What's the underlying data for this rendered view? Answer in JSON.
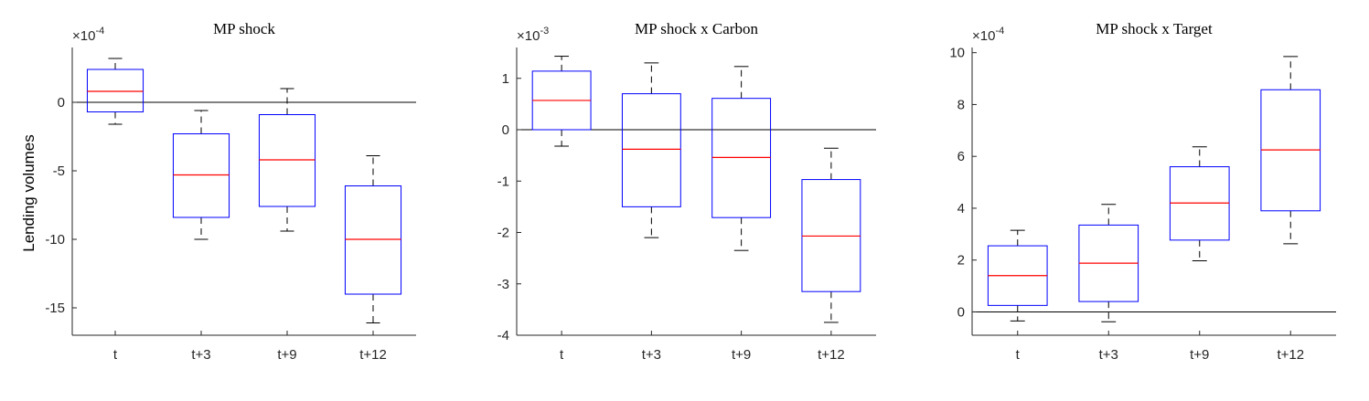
{
  "colors": {
    "box": "#0000ff",
    "median": "#ff0000",
    "whisker": "#000000",
    "axis": "#262626"
  },
  "chart_data": [
    {
      "type": "boxplot",
      "title": "MP shock",
      "ylabel": "Lending volumes",
      "exponent_base": "×10",
      "exponent_power": "-4",
      "categories": [
        "t",
        "t+3",
        "t+9",
        "t+12"
      ],
      "ylim": [
        -17,
        4
      ],
      "yticks": [
        -15,
        -10,
        -5,
        0
      ],
      "zero_line": true,
      "boxes": [
        {
          "whisker_low": -1.6,
          "q1": -0.7,
          "median": 0.8,
          "q3": 2.4,
          "whisker_high": 3.2
        },
        {
          "whisker_low": -10.0,
          "q1": -8.4,
          "median": -5.3,
          "q3": -2.3,
          "whisker_high": -0.6
        },
        {
          "whisker_low": -9.4,
          "q1": -7.6,
          "median": -4.2,
          "q3": -0.9,
          "whisker_high": 1.0
        },
        {
          "whisker_low": -16.1,
          "q1": -14.0,
          "median": -10.0,
          "q3": -6.1,
          "whisker_high": -3.9
        }
      ]
    },
    {
      "type": "boxplot",
      "title": "MP shock x Carbon",
      "ylabel": "",
      "exponent_base": "×10",
      "exponent_power": "-3",
      "categories": [
        "t",
        "t+3",
        "t+9",
        "t+12"
      ],
      "ylim": [
        -4,
        1.6
      ],
      "yticks": [
        -4,
        -3,
        -2,
        -1,
        0,
        1
      ],
      "zero_line": true,
      "boxes": [
        {
          "whisker_low": -0.32,
          "q1": 0.0,
          "median": 0.57,
          "q3": 1.14,
          "whisker_high": 1.43
        },
        {
          "whisker_low": -2.1,
          "q1": -1.5,
          "median": -0.38,
          "q3": 0.7,
          "whisker_high": 1.3
        },
        {
          "whisker_low": -2.35,
          "q1": -1.71,
          "median": -0.54,
          "q3": 0.61,
          "whisker_high": 1.23
        },
        {
          "whisker_low": -3.75,
          "q1": -3.15,
          "median": -2.07,
          "q3": -0.97,
          "whisker_high": -0.36
        }
      ]
    },
    {
      "type": "boxplot",
      "title": "MP shock x Target",
      "ylabel": "",
      "exponent_base": "×10",
      "exponent_power": "-4",
      "categories": [
        "t",
        "t+3",
        "t+9",
        "t+12"
      ],
      "ylim": [
        -0.9,
        10.2
      ],
      "yticks": [
        0,
        2,
        4,
        6,
        8,
        10
      ],
      "zero_line": true,
      "boxes": [
        {
          "whisker_low": -0.35,
          "q1": 0.25,
          "median": 1.4,
          "q3": 2.55,
          "whisker_high": 3.15
        },
        {
          "whisker_low": -0.38,
          "q1": 0.4,
          "median": 1.88,
          "q3": 3.35,
          "whisker_high": 4.15
        },
        {
          "whisker_low": 1.97,
          "q1": 2.77,
          "median": 4.2,
          "q3": 5.6,
          "whisker_high": 6.37
        },
        {
          "whisker_low": 2.63,
          "q1": 3.9,
          "median": 6.25,
          "q3": 8.57,
          "whisker_high": 9.85
        }
      ]
    }
  ]
}
